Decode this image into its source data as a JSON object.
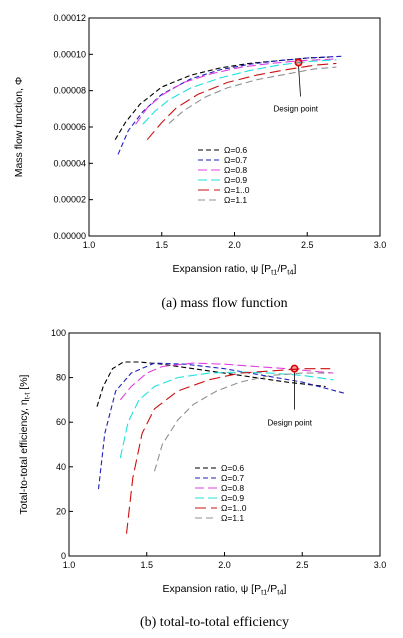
{
  "series_styles": [
    {
      "omega": "Ω=0.6",
      "color": "#000000"
    },
    {
      "omega": "Ω=0.7",
      "color": "#2020c0"
    },
    {
      "omega": "Ω=0.8",
      "color": "#e040e0"
    },
    {
      "omega": "Ω=0.9",
      "color": "#20e0e0"
    },
    {
      "omega": "Ω=1..0",
      "color": "#cc1010"
    },
    {
      "omega": "Ω=1.1",
      "color": "#909090"
    }
  ],
  "design_point_color": "#e00000",
  "chart_data": [
    {
      "type": "line",
      "caption": "(a)  mass flow function",
      "xlabel_prefix": "Expansion ratio,",
      "xlabel_math": "ψ [P",
      "xlabel_sub1": "t1",
      "xlabel_mid": "/P",
      "xlabel_sub2": "t4",
      "xlabel_end": "]",
      "ylabel": "Mass flow function, Φ",
      "xlim": [
        1.0,
        3.0
      ],
      "ylim": [
        0,
        0.00012
      ],
      "xticks": [
        "1.0",
        "1.5",
        "2.0",
        "2.5",
        "3.0"
      ],
      "xtick_values": [
        1.0,
        1.5,
        2.0,
        2.5,
        3.0
      ],
      "yticks": [
        "0.00000",
        "0.00002",
        "0.00004",
        "0.00006",
        "0.00008",
        "0.00010",
        "0.00012"
      ],
      "ytick_values": [
        0,
        2e-05,
        4e-05,
        6e-05,
        8e-05,
        0.0001,
        0.00012
      ],
      "legend": [
        "Ω=0.6",
        "Ω=0.7",
        "Ω=0.8",
        "Ω=0.9",
        "Ω=1..0",
        "Ω=1.1"
      ],
      "annotation": {
        "text": "Design point",
        "x": 2.44,
        "y": 9.55e-05
      },
      "series": [
        {
          "name": "Ω=0.6",
          "x": [
            1.18,
            1.25,
            1.35,
            1.5,
            1.7,
            1.9,
            2.1,
            2.3,
            2.5,
            2.65
          ],
          "y": [
            5.3e-05,
            6.25e-05,
            7.25e-05,
            8.2e-05,
            8.85e-05,
            9.25e-05,
            9.5e-05,
            9.65e-05,
            9.8e-05,
            9.85e-05
          ]
        },
        {
          "name": "Ω=0.7",
          "x": [
            1.2,
            1.27,
            1.37,
            1.5,
            1.7,
            1.9,
            2.1,
            2.3,
            2.5,
            2.75
          ],
          "y": [
            4.5e-05,
            5.8e-05,
            6.85e-05,
            7.8e-05,
            8.65e-05,
            9.15e-05,
            9.45e-05,
            9.65e-05,
            9.8e-05,
            9.9e-05
          ]
        },
        {
          "name": "Ω=0.8",
          "x": [
            1.32,
            1.4,
            1.5,
            1.65,
            1.85,
            2.05,
            2.25,
            2.45,
            2.7
          ],
          "y": [
            6.15e-05,
            7.05e-05,
            7.75e-05,
            8.45e-05,
            8.95e-05,
            9.3e-05,
            9.5e-05,
            9.65e-05,
            9.75e-05
          ]
        },
        {
          "name": "Ω=0.9",
          "x": [
            1.37,
            1.45,
            1.55,
            1.7,
            1.9,
            2.1,
            2.3,
            2.5,
            2.7
          ],
          "y": [
            6.15e-05,
            6.85e-05,
            7.5e-05,
            8.15e-05,
            8.7e-05,
            9.1e-05,
            9.4e-05,
            9.6e-05,
            9.7e-05
          ]
        },
        {
          "name": "Ω=1..0",
          "x": [
            1.4,
            1.5,
            1.6,
            1.75,
            1.95,
            2.15,
            2.35,
            2.55,
            2.7
          ],
          "y": [
            5.3e-05,
            6.25e-05,
            7.05e-05,
            7.8e-05,
            8.45e-05,
            8.85e-05,
            9.15e-05,
            9.4e-05,
            9.5e-05
          ]
        },
        {
          "name": "Ω=1.1",
          "x": [
            1.55,
            1.65,
            1.8,
            1.95,
            2.15,
            2.35,
            2.55,
            2.7
          ],
          "y": [
            6.2e-05,
            6.9e-05,
            7.65e-05,
            8.15e-05,
            8.6e-05,
            8.9e-05,
            9.2e-05,
            9.3e-05
          ]
        }
      ]
    },
    {
      "type": "line",
      "caption": "(b)  total-to-total  efficiency",
      "xlabel_prefix": "Expansion ratio,",
      "xlabel_math": "ψ [P",
      "xlabel_sub1": "t1",
      "xlabel_mid": "/P",
      "xlabel_sub2": "t4",
      "xlabel_end": "]",
      "ylabel_main": "Total-to-total efficiency, η",
      "ylabel_sub": "t-t",
      "ylabel_end": " [%]",
      "xlim": [
        1.0,
        3.0
      ],
      "ylim": [
        0,
        100
      ],
      "xticks": [
        "1.0",
        "1.5",
        "2.0",
        "2.5",
        "3.0"
      ],
      "xtick_values": [
        1.0,
        1.5,
        2.0,
        2.5,
        3.0
      ],
      "yticks": [
        "0",
        "20",
        "40",
        "60",
        "80",
        "100"
      ],
      "ytick_values": [
        0,
        20,
        40,
        60,
        80,
        100
      ],
      "legend": [
        "Ω=0.6",
        "Ω=0.7",
        "Ω=0.8",
        "Ω=0.9",
        "Ω=1..0",
        "Ω=1.1"
      ],
      "annotation": {
        "text": "Design point",
        "x": 2.45,
        "y": 84
      },
      "series": [
        {
          "name": "Ω=0.6",
          "x": [
            1.18,
            1.22,
            1.28,
            1.35,
            1.45,
            1.6,
            1.8,
            2.0,
            2.2,
            2.4,
            2.65
          ],
          "y": [
            67,
            76,
            84,
            87,
            87,
            86,
            84,
            82,
            80,
            78,
            76
          ]
        },
        {
          "name": "Ω=0.7",
          "x": [
            1.19,
            1.23,
            1.3,
            1.4,
            1.55,
            1.75,
            2.0,
            2.25,
            2.5,
            2.77
          ],
          "y": [
            30,
            55,
            74,
            82,
            86.5,
            86,
            84,
            81,
            78,
            73
          ]
        },
        {
          "name": "Ω=0.8",
          "x": [
            1.33,
            1.4,
            1.5,
            1.6,
            1.8,
            2.0,
            2.2,
            2.4,
            2.7
          ],
          "y": [
            70,
            76,
            82,
            85,
            86.5,
            86,
            85,
            84,
            82
          ]
        },
        {
          "name": "Ω=0.9",
          "x": [
            1.33,
            1.38,
            1.45,
            1.55,
            1.7,
            1.9,
            2.1,
            2.3,
            2.5,
            2.7
          ],
          "y": [
            44,
            60,
            70,
            76,
            80,
            82,
            82.5,
            82,
            81,
            79
          ]
        },
        {
          "name": "Ω=1..0",
          "x": [
            1.37,
            1.41,
            1.47,
            1.55,
            1.7,
            1.9,
            2.1,
            2.3,
            2.5,
            2.68
          ],
          "y": [
            10,
            35,
            55,
            66,
            74,
            79,
            82,
            83,
            84,
            84
          ]
        },
        {
          "name": "Ω=1.1",
          "x": [
            1.55,
            1.6,
            1.7,
            1.8,
            1.95,
            2.1,
            2.3,
            2.5,
            2.68
          ],
          "y": [
            38,
            50,
            61,
            68,
            74,
            78,
            81,
            82,
            82
          ]
        }
      ]
    }
  ]
}
